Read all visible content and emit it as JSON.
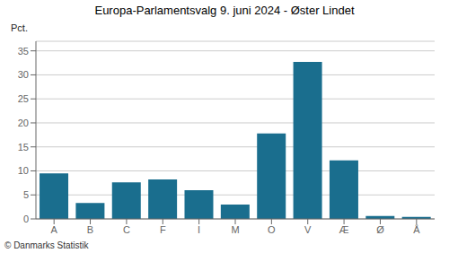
{
  "chart_data": {
    "type": "bar",
    "title": "Europa-Parlamentsvalg 9. juni 2024 - Øster Lindet",
    "categories": [
      "A",
      "B",
      "C",
      "F",
      "I",
      "M",
      "O",
      "V",
      "Æ",
      "Ø",
      "Å"
    ],
    "values": [
      9.5,
      3.3,
      7.6,
      8.2,
      6.0,
      3.0,
      17.8,
      32.7,
      12.2,
      0.6,
      0.4
    ],
    "color": "#1a6e8e",
    "ylabel": "Pct.",
    "ylim": [
      0,
      37
    ],
    "yticks": [
      0,
      5,
      10,
      15,
      20,
      25,
      30,
      35
    ],
    "grid": true,
    "annotations": [
      "© Danmarks Statistik"
    ]
  }
}
